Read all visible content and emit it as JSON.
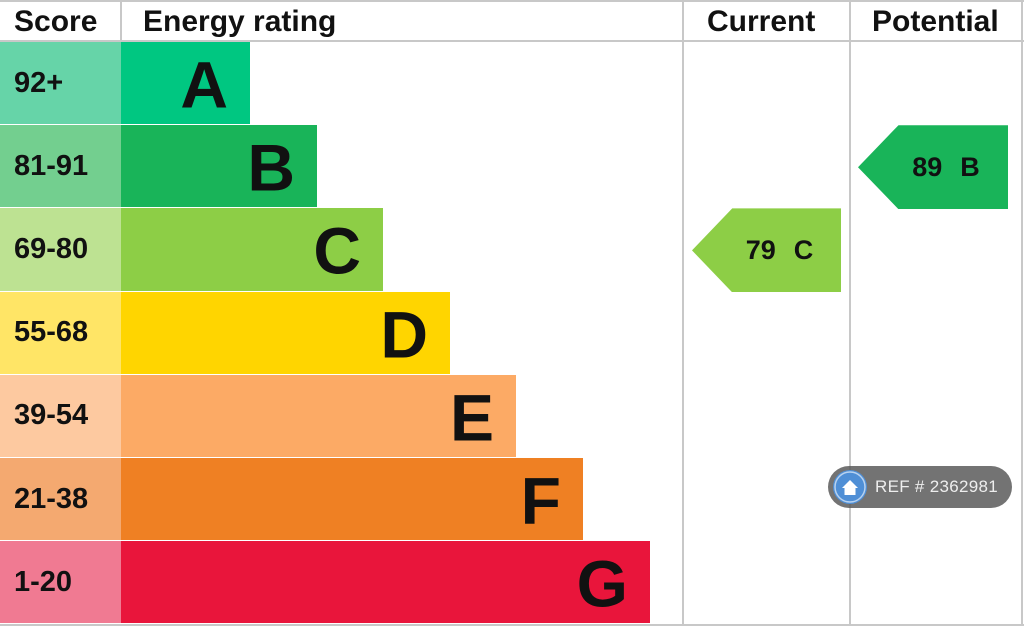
{
  "headers": {
    "score": "Score",
    "energy_rating": "Energy rating",
    "current": "Current",
    "potential": "Potential"
  },
  "bands": [
    {
      "score": "92+",
      "letter": "A",
      "bar_color": "#00c781",
      "score_color": "#66d4a8"
    },
    {
      "score": "81-91",
      "letter": "B",
      "bar_color": "#19b459",
      "score_color": "#73cf8f"
    },
    {
      "score": "69-80",
      "letter": "C",
      "bar_color": "#8dce46",
      "score_color": "#bde292"
    },
    {
      "score": "55-68",
      "letter": "D",
      "bar_color": "#ffd500",
      "score_color": "#ffe566"
    },
    {
      "score": "39-54",
      "letter": "E",
      "bar_color": "#fcaa65",
      "score_color": "#fdc9a0"
    },
    {
      "score": "21-38",
      "letter": "F",
      "bar_color": "#ef8023",
      "score_color": "#f4a970"
    },
    {
      "score": "1-20",
      "letter": "G",
      "bar_color": "#e9153b",
      "score_color": "#f07a92"
    }
  ],
  "current": {
    "value": "79",
    "letter": "C",
    "band_index": 2,
    "color": "#8dce46"
  },
  "potential": {
    "value": "89",
    "letter": "B",
    "band_index": 1,
    "color": "#19b459"
  },
  "reference": {
    "label": "REF # 2362981",
    "icon": "home-icon"
  },
  "chart_data": {
    "type": "bar",
    "categories": [
      "A",
      "B",
      "C",
      "D",
      "E",
      "F",
      "G"
    ],
    "score_ranges": [
      "92+",
      "81-91",
      "69-80",
      "55-68",
      "39-54",
      "21-38",
      "1-20"
    ],
    "current": {
      "value": 79,
      "band": "C"
    },
    "potential": {
      "value": 89,
      "band": "B"
    }
  }
}
